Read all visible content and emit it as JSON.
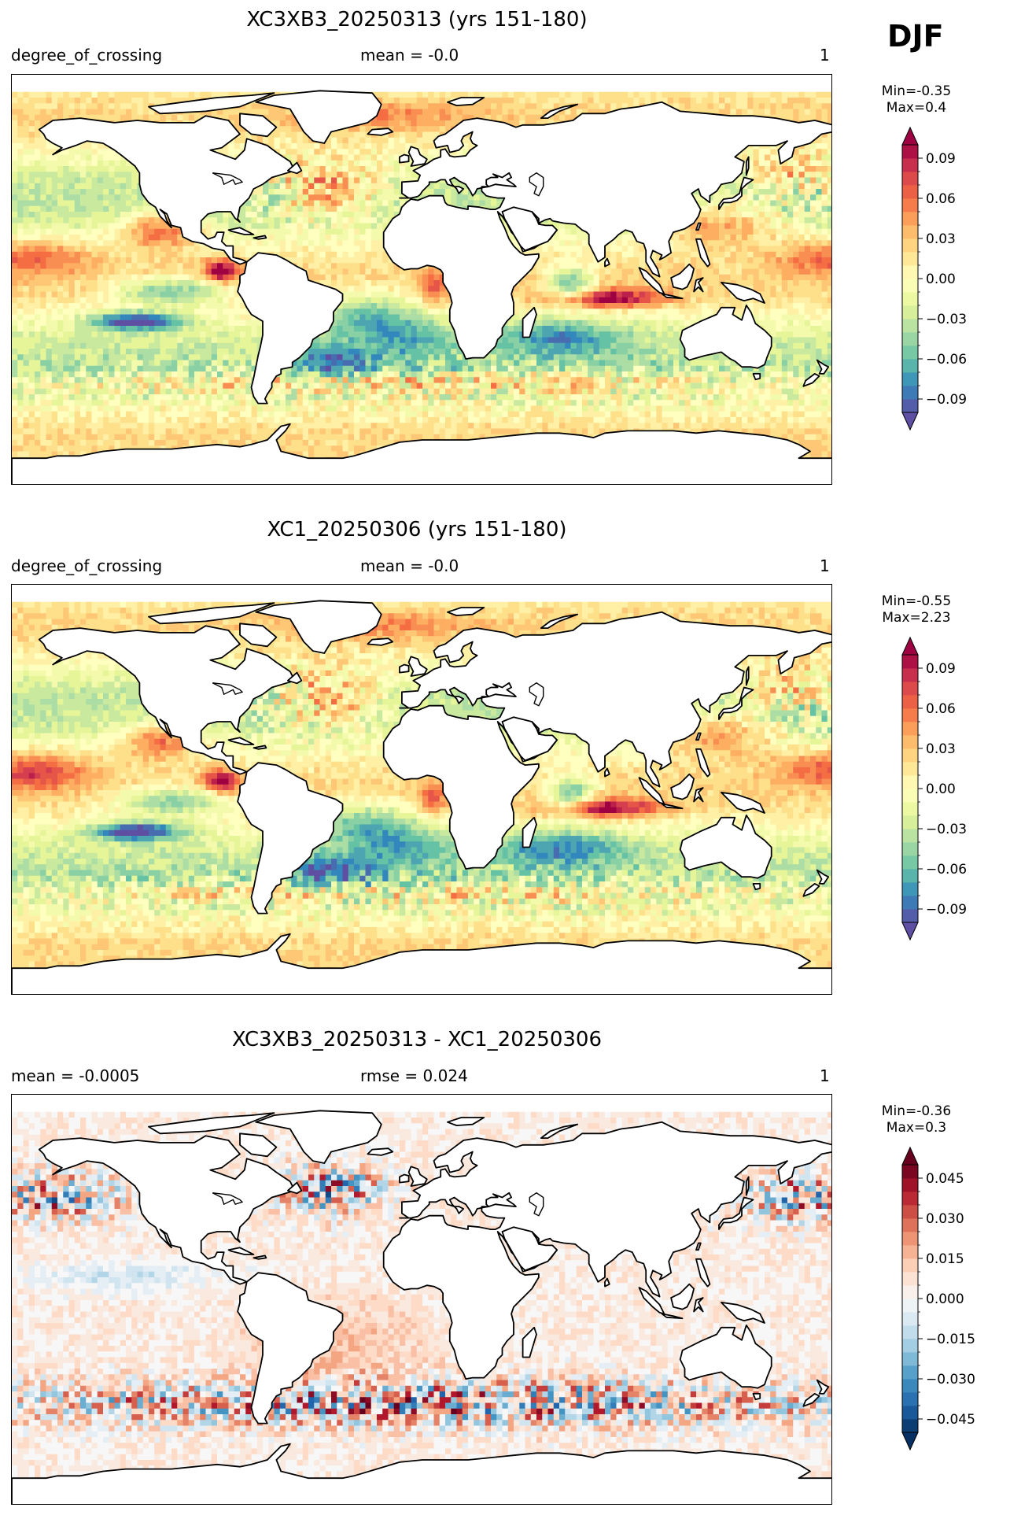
{
  "figure": {
    "season": "DJF"
  },
  "panels": [
    {
      "title": "XC3XB3_20250313 (yrs 151-180)",
      "left": "degree_of_crossing",
      "center": "mean = -0.0",
      "right": "1",
      "min": "Min=-0.35",
      "max": "Max=0.4",
      "colormap": "Spectral_r",
      "colorbar": {
        "vmin": -0.1,
        "vmax": 0.1,
        "levels": 20,
        "ticks": [
          0.09,
          0.06,
          0.03,
          0.0,
          -0.03,
          -0.06,
          -0.09
        ],
        "tick_labels": [
          "0.09",
          "0.06",
          "0.03",
          "0.00",
          "−0.03",
          "−0.06",
          "−0.09"
        ]
      }
    },
    {
      "title": "XC1_20250306 (yrs 151-180)",
      "left": "degree_of_crossing",
      "center": "mean = -0.0",
      "right": "1",
      "min": "Min=-0.55",
      "max": "Max=2.23",
      "colormap": "Spectral_r",
      "colorbar": {
        "vmin": -0.1,
        "vmax": 0.1,
        "levels": 20,
        "ticks": [
          0.09,
          0.06,
          0.03,
          0.0,
          -0.03,
          -0.06,
          -0.09
        ],
        "tick_labels": [
          "0.09",
          "0.06",
          "0.03",
          "0.00",
          "−0.03",
          "−0.06",
          "−0.09"
        ]
      }
    },
    {
      "title": "XC3XB3_20250313 - XC1_20250306",
      "left": "mean = -0.0005",
      "center": "rmse = 0.024",
      "right": "1",
      "min": "Min=-0.36",
      "max": "Max=0.3",
      "colormap": "RdBu_r",
      "colorbar": {
        "vmin": -0.05,
        "vmax": 0.05,
        "levels": 20,
        "ticks": [
          0.045,
          0.03,
          0.015,
          0.0,
          -0.015,
          -0.03,
          -0.045
        ],
        "tick_labels": [
          "0.045",
          "0.030",
          "0.015",
          "0.000",
          "−0.015",
          "−0.030",
          "−0.045"
        ]
      }
    }
  ],
  "chart_data": [
    {
      "type": "heatmap",
      "title": "XC3XB3_20250313 (yrs 151-180)",
      "variable": "degree_of_crossing",
      "mean": -0.0,
      "min": -0.35,
      "max": 0.4,
      "color_range": [
        -0.1,
        0.1
      ]
    },
    {
      "type": "heatmap",
      "title": "XC1_20250306 (yrs 151-180)",
      "variable": "degree_of_crossing",
      "mean": -0.0,
      "min": -0.55,
      "max": 2.23,
      "color_range": [
        -0.1,
        0.1
      ]
    },
    {
      "type": "heatmap",
      "title": "XC3XB3_20250313 - XC1_20250306",
      "mean": -0.0005,
      "rmse": 0.024,
      "min": -0.36,
      "max": 0.3,
      "color_range": [
        -0.05,
        0.05
      ]
    }
  ]
}
